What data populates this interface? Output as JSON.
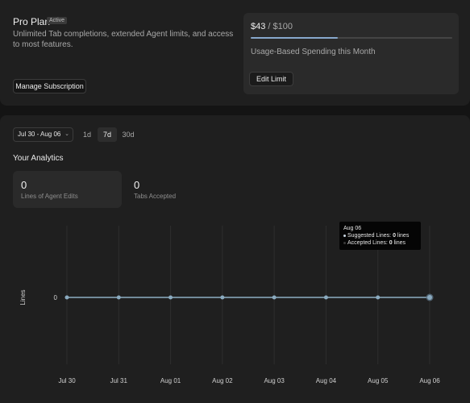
{
  "plan": {
    "title": "Pro Plan",
    "badge": "Active",
    "description": "Unlimited Tab completions, extended Agent limits, and access to most features.",
    "manage_label": "Manage Subscription"
  },
  "spending": {
    "amount": "$43",
    "separator": " / ",
    "limit": "$100",
    "progress_fraction": 0.43,
    "label": "Usage-Based Spending this Month",
    "edit_label": "Edit Limit"
  },
  "filters": {
    "date_range": "Jul 30 - Aug 06",
    "tabs": [
      "1d",
      "7d",
      "30d"
    ],
    "active_tab": "7d"
  },
  "analytics": {
    "title": "Your Analytics",
    "stats": [
      {
        "value": "0",
        "label": "Lines of Agent Edits"
      },
      {
        "value": "0",
        "label": "Tabs Accepted"
      }
    ]
  },
  "tooltip": {
    "date": "Aug 06",
    "rows": [
      {
        "label": "Suggested Lines:",
        "value": "0",
        "unit": "lines",
        "color": "#c8d4e0"
      },
      {
        "label": "Accepted Lines:",
        "value": "0",
        "unit": "lines",
        "color": "#3a3a3a"
      }
    ]
  },
  "chart_data": {
    "type": "line",
    "categories": [
      "Jul 30",
      "Jul 31",
      "Aug 01",
      "Aug 02",
      "Aug 03",
      "Aug 04",
      "Aug 05",
      "Aug 06"
    ],
    "series": [
      {
        "name": "Suggested Lines",
        "values": [
          0,
          0,
          0,
          0,
          0,
          0,
          0,
          0
        ],
        "color": "#8aaabf"
      },
      {
        "name": "Accepted Lines",
        "values": [
          0,
          0,
          0,
          0,
          0,
          0,
          0,
          0
        ],
        "color": "#3a3a3a"
      }
    ],
    "ylabel": "Lines",
    "yticks": [
      "0"
    ],
    "highlighted": "Aug 06",
    "grid": true
  },
  "colors": {
    "accent": "#88a8cc",
    "background": "#141414",
    "card": "#1f1f1f"
  }
}
